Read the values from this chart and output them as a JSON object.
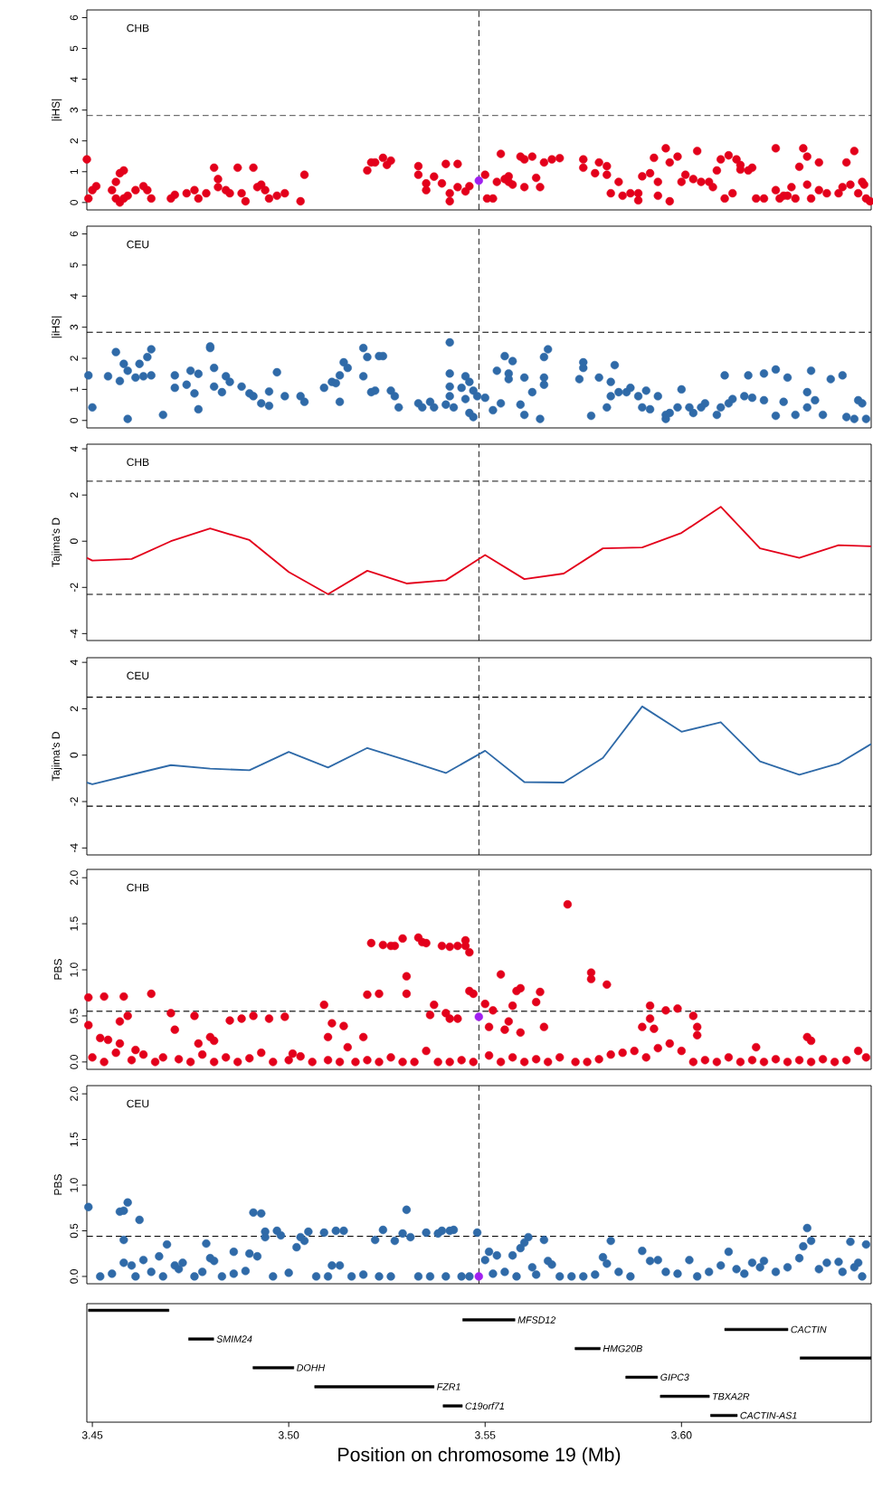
{
  "chart_data": [
    {
      "type": "scatter",
      "title": "CHB",
      "ylabel": "|iHS|",
      "marker": "circle",
      "tick_labels": "y",
      "xlim": [
        3.4486,
        3.6483
      ],
      "ylim": [
        -0.24,
        6.25
      ],
      "yticks": [
        0,
        1,
        2,
        3,
        4,
        5,
        6
      ],
      "ref_lines": [
        {
          "axis": "x",
          "value": 3.5484,
          "line_style": "dashed"
        },
        {
          "axis": "y",
          "value": 2.82,
          "line_style": "dashed"
        }
      ],
      "series": [
        {
          "color": "#e3001b",
          "x": [
            3.4486,
            3.449,
            3.45,
            3.451,
            3.455,
            3.456,
            3.456,
            3.457,
            3.457,
            3.458,
            3.458,
            3.459,
            3.461,
            3.463,
            3.464,
            3.465,
            3.47,
            3.471,
            3.474,
            3.476,
            3.477,
            3.479,
            3.481,
            3.482,
            3.482,
            3.484,
            3.485,
            3.487,
            3.488,
            3.489,
            3.491,
            3.492,
            3.493,
            3.494,
            3.495,
            3.497,
            3.499,
            3.503,
            3.504,
            3.52,
            3.521,
            3.522,
            3.524,
            3.525,
            3.526,
            3.533,
            3.533,
            3.535,
            3.535,
            3.537,
            3.539,
            3.54,
            3.541,
            3.541,
            3.543,
            3.543,
            3.545,
            3.546,
            3.55,
            3.5505,
            3.552,
            3.553,
            3.554,
            3.555,
            3.556,
            3.556,
            3.557,
            3.559,
            3.56,
            3.56,
            3.562,
            3.563,
            3.564,
            3.565,
            3.567,
            3.569,
            3.575,
            3.575,
            3.578,
            3.579,
            3.581,
            3.581,
            3.582,
            3.584,
            3.585,
            3.587,
            3.589,
            3.589,
            3.59,
            3.592,
            3.593,
            3.594,
            3.594,
            3.596,
            3.597,
            3.597,
            3.599,
            3.6,
            3.601,
            3.603,
            3.604,
            3.605,
            3.607,
            3.608,
            3.609,
            3.61,
            3.611,
            3.612,
            3.613,
            3.614,
            3.615,
            3.615,
            3.617,
            3.618,
            3.619,
            3.621,
            3.624,
            3.624,
            3.625,
            3.626,
            3.627,
            3.628,
            3.629,
            3.63,
            3.631,
            3.632,
            3.632,
            3.633,
            3.635,
            3.635,
            3.637,
            3.64,
            3.641,
            3.642,
            3.643,
            3.644,
            3.645,
            3.646,
            3.6465,
            3.647,
            3.648
          ],
          "values": [
            1.4,
            0.13,
            0.4,
            0.53,
            0.4,
            0.67,
            0.13,
            0,
            0.95,
            1.04,
            0.13,
            0.22,
            0.4,
            0.53,
            0.4,
            0.13,
            0.13,
            0.25,
            0.3,
            0.4,
            0.13,
            0.3,
            1.13,
            0.76,
            0.5,
            0.4,
            0.3,
            1.13,
            0.3,
            0.04,
            1.13,
            0.5,
            0.58,
            0.4,
            0.13,
            0.22,
            0.3,
            0.04,
            0.9,
            1.04,
            1.3,
            1.3,
            1.45,
            1.22,
            1.36,
            1.18,
            0.9,
            0.62,
            0.4,
            0.84,
            0.62,
            1.25,
            0.04,
            0.3,
            1.25,
            0.5,
            0.36,
            0.53,
            0.9,
            0.13,
            0.13,
            0.67,
            1.58,
            0.76,
            0.85,
            0.67,
            0.58,
            1.49,
            1.4,
            0.5,
            1.49,
            0.8,
            0.5,
            1.3,
            1.4,
            1.44,
            1.13,
            1.4,
            0.95,
            1.3,
            1.18,
            0.9,
            0.3,
            0.67,
            0.22,
            0.3,
            0.3,
            0.07,
            0.85,
            0.95,
            1.45,
            0.67,
            0.22,
            1.76,
            1.3,
            0.04,
            1.49,
            0.67,
            0.9,
            0.76,
            1.67,
            0.67,
            0.67,
            0.5,
            1.04,
            1.4,
            0.13,
            1.53,
            0.3,
            1.4,
            1.22,
            1.07,
            1.04,
            1.13,
            0.13,
            0.13,
            0.4,
            1.76,
            0.13,
            0.22,
            0.22,
            0.5,
            0.13,
            1.16,
            1.76,
            1.49,
            0.58,
            0.13,
            1.3,
            0.4,
            0.3,
            0.3,
            0.5,
            1.3,
            0.58,
            1.67,
            0.3,
            0.67,
            0.58,
            0.13,
            0.04
          ]
        },
        {
          "color": "#a020f0",
          "x": [
            3.5484
          ],
          "values": [
            0.71
          ]
        }
      ]
    },
    {
      "type": "scatter",
      "title": "CEU",
      "ylabel": "|iHS|",
      "marker": "circle",
      "tick_labels": "y",
      "xlim": [
        3.4486,
        3.6483
      ],
      "ylim": [
        -0.24,
        6.25
      ],
      "yticks": [
        0,
        1,
        2,
        3,
        4,
        5,
        6
      ],
      "ref_lines": [
        {
          "axis": "x",
          "value": 3.5484,
          "line_style": "dashed"
        },
        {
          "axis": "y",
          "value": 2.84,
          "line_style": "dashed"
        }
      ],
      "series": [
        {
          "color": "#2f6aa8",
          "x": [
            3.449,
            3.45,
            3.454,
            3.456,
            3.457,
            3.458,
            3.459,
            3.459,
            3.461,
            3.462,
            3.463,
            3.464,
            3.465,
            3.465,
            3.468,
            3.471,
            3.471,
            3.474,
            3.475,
            3.476,
            3.477,
            3.477,
            3.48,
            3.48,
            3.481,
            3.481,
            3.483,
            3.484,
            3.485,
            3.488,
            3.49,
            3.491,
            3.493,
            3.495,
            3.495,
            3.497,
            3.499,
            3.503,
            3.504,
            3.509,
            3.511,
            3.512,
            3.513,
            3.513,
            3.514,
            3.515,
            3.519,
            3.519,
            3.52,
            3.521,
            3.522,
            3.523,
            3.524,
            3.526,
            3.527,
            3.528,
            3.533,
            3.534,
            3.536,
            3.537,
            3.54,
            3.541,
            3.541,
            3.541,
            3.541,
            3.542,
            3.544,
            3.545,
            3.545,
            3.546,
            3.547,
            3.547,
            3.546,
            3.548,
            3.55,
            3.552,
            3.553,
            3.554,
            3.555,
            3.556,
            3.556,
            3.557,
            3.559,
            3.56,
            3.56,
            3.562,
            3.564,
            3.565,
            3.565,
            3.565,
            3.566,
            3.574,
            3.575,
            3.575,
            3.577,
            3.579,
            3.581,
            3.582,
            3.582,
            3.583,
            3.584,
            3.586,
            3.587,
            3.589,
            3.59,
            3.591,
            3.592,
            3.594,
            3.596,
            3.596,
            3.597,
            3.599,
            3.6,
            3.602,
            3.603,
            3.605,
            3.606,
            3.609,
            3.61,
            3.611,
            3.612,
            3.613,
            3.616,
            3.617,
            3.618,
            3.621,
            3.621,
            3.624,
            3.624,
            3.626,
            3.627,
            3.629,
            3.632,
            3.632,
            3.633,
            3.634,
            3.636,
            3.638,
            3.641,
            3.642,
            3.644,
            3.645,
            3.646,
            3.647
          ],
          "values": [
            1.45,
            0.42,
            1.42,
            2.2,
            1.27,
            1.82,
            0.05,
            1.6,
            1.38,
            1.82,
            1.42,
            2.04,
            2.29,
            1.45,
            0.18,
            1.45,
            1.05,
            1.15,
            1.6,
            0.87,
            0.36,
            1.5,
            2.38,
            2.33,
            1.69,
            1.09,
            0.91,
            1.42,
            1.24,
            1.09,
            0.87,
            0.78,
            0.55,
            0.47,
            0.93,
            1.55,
            0.78,
            0.78,
            0.6,
            1.05,
            1.24,
            1.2,
            0.6,
            1.45,
            1.87,
            1.69,
            2.33,
            1.42,
            2.04,
            0.91,
            0.96,
            2.07,
            2.07,
            0.96,
            0.78,
            0.42,
            0.55,
            0.42,
            0.6,
            0.42,
            0.51,
            2.51,
            1.51,
            1.09,
            0.78,
            0.42,
            1.05,
            1.42,
            0.69,
            0.24,
            0.11,
            0.96,
            1.24,
            0.78,
            0.73,
            0.33,
            1.6,
            0.55,
            2.07,
            1.51,
            1.33,
            1.91,
            0.51,
            1.38,
            0.18,
            0.91,
            0.05,
            1.38,
            1.15,
            2.04,
            2.29,
            1.33,
            1.69,
            1.87,
            0.15,
            1.38,
            0.42,
            0.78,
            1.24,
            1.78,
            0.91,
            0.91,
            1.05,
            0.78,
            0.42,
            0.96,
            0.36,
            0.78,
            0.05,
            0.18,
            0.24,
            0.42,
            1.0,
            0.42,
            0.24,
            0.42,
            0.55,
            0.18,
            0.42,
            1.45,
            0.55,
            0.69,
            0.78,
            1.45,
            0.73,
            1.51,
            0.65,
            0.15,
            1.64,
            0.6,
            1.38,
            0.18,
            0.42,
            0.91,
            1.6,
            0.65,
            0.18,
            1.33,
            1.45,
            0.11,
            0.05,
            0.65,
            0.55,
            0.05
          ]
        }
      ]
    },
    {
      "type": "line",
      "title": "CHB",
      "ylabel": "Tajima's D",
      "tick_labels": "y",
      "xlim": [
        3.4486,
        3.6483
      ],
      "ylim": [
        -4.3,
        4.2
      ],
      "yticks": [
        -4,
        -2,
        0,
        2,
        4
      ],
      "ref_lines": [
        {
          "axis": "x",
          "value": 3.5484,
          "line_style": "dashed"
        },
        {
          "axis": "y",
          "value": 2.6,
          "line_style": "dashed"
        },
        {
          "axis": "y",
          "value": -2.3,
          "line_style": "dashed"
        }
      ],
      "series": [
        {
          "color": "#e3001b",
          "x": [
            3.4486,
            3.45,
            3.46,
            3.47,
            3.48,
            3.49,
            3.5,
            3.51,
            3.52,
            3.53,
            3.54,
            3.55,
            3.56,
            3.57,
            3.58,
            3.59,
            3.6,
            3.61,
            3.62,
            3.63,
            3.64,
            3.6483
          ],
          "values": [
            -0.72,
            -0.84,
            -0.77,
            0.0,
            0.55,
            0.05,
            -1.33,
            -2.29,
            -1.28,
            -1.83,
            -1.69,
            -0.6,
            -1.64,
            -1.4,
            -0.31,
            -0.27,
            0.36,
            1.49,
            -0.31,
            -0.72,
            -0.17,
            -0.22
          ]
        }
      ]
    },
    {
      "type": "line",
      "title": "CEU",
      "ylabel": "Tajima's D",
      "tick_labels": "y",
      "xlim": [
        3.4486,
        3.6483
      ],
      "ylim": [
        -4.3,
        4.2
      ],
      "yticks": [
        -4,
        -2,
        0,
        2,
        4
      ],
      "ref_lines": [
        {
          "axis": "x",
          "value": 3.5484,
          "line_style": "dashed"
        },
        {
          "axis": "y",
          "value": 2.5,
          "line_style": "dashed"
        },
        {
          "axis": "y",
          "value": -2.2,
          "line_style": "dashed"
        }
      ],
      "series": [
        {
          "color": "#2f6aa8",
          "x": [
            3.4486,
            3.45,
            3.46,
            3.47,
            3.48,
            3.49,
            3.5,
            3.51,
            3.52,
            3.53,
            3.54,
            3.55,
            3.56,
            3.57,
            3.58,
            3.59,
            3.6,
            3.61,
            3.62,
            3.63,
            3.64,
            3.6483
          ],
          "values": [
            -1.18,
            -1.25,
            -0.84,
            -0.43,
            -0.58,
            -0.65,
            0.14,
            -0.53,
            0.31,
            -0.22,
            -0.77,
            0.19,
            -1.16,
            -1.18,
            -0.12,
            2.1,
            1.01,
            1.42,
            -0.27,
            -0.84,
            -0.36,
            0.48
          ]
        }
      ]
    },
    {
      "type": "scatter",
      "title": "CHB",
      "ylabel": "PBS",
      "marker": "circle",
      "tick_labels": "y",
      "xlim": [
        3.4486,
        3.6483
      ],
      "ylim": [
        -0.08,
        2.09
      ],
      "yticks": [
        {
          "value": 0,
          "label": "0.0"
        },
        0.5,
        {
          "value": 1,
          "label": "1.0"
        },
        1.5,
        {
          "value": 2,
          "label": "2.0"
        }
      ],
      "ref_lines": [
        {
          "axis": "x",
          "value": 3.5484,
          "line_style": "dashed"
        },
        {
          "axis": "y",
          "value": 0.55,
          "line_style": "dashed"
        }
      ],
      "series": [
        {
          "color": "#e3001b",
          "x": [
            3.449,
            3.449,
            3.453,
            3.458,
            3.459,
            3.457,
            3.465,
            3.452,
            3.454,
            3.457,
            3.461,
            3.47,
            3.471,
            3.476,
            3.477,
            3.48,
            3.481,
            3.485,
            3.488,
            3.491,
            3.495,
            3.499,
            3.501,
            3.509,
            3.51,
            3.511,
            3.514,
            3.515,
            3.519,
            3.521,
            3.52,
            3.523,
            3.524,
            3.526,
            3.527,
            3.529,
            3.53,
            3.53,
            3.533,
            3.534,
            3.535,
            3.536,
            3.537,
            3.539,
            3.54,
            3.541,
            3.541,
            3.543,
            3.543,
            3.545,
            3.546,
            3.545,
            3.546,
            3.547,
            3.55,
            3.551,
            3.552,
            3.554,
            3.555,
            3.556,
            3.557,
            3.558,
            3.559,
            3.559,
            3.563,
            3.564,
            3.565,
            3.571,
            3.577,
            3.577,
            3.581,
            3.59,
            3.592,
            3.592,
            3.593,
            3.596,
            3.599,
            3.603,
            3.604,
            3.604,
            3.632,
            3.633,
            3.619,
            3.45,
            3.453,
            3.456,
            3.46,
            3.463,
            3.466,
            3.468,
            3.472,
            3.475,
            3.478,
            3.481,
            3.484,
            3.487,
            3.49,
            3.493,
            3.496,
            3.5,
            3.503,
            3.506,
            3.51,
            3.513,
            3.517,
            3.52,
            3.523,
            3.526,
            3.529,
            3.532,
            3.535,
            3.538,
            3.541,
            3.544,
            3.547,
            3.551,
            3.554,
            3.557,
            3.56,
            3.563,
            3.566,
            3.569,
            3.573,
            3.576,
            3.579,
            3.582,
            3.585,
            3.588,
            3.591,
            3.594,
            3.597,
            3.6,
            3.603,
            3.606,
            3.609,
            3.612,
            3.615,
            3.618,
            3.621,
            3.624,
            3.627,
            3.63,
            3.633,
            3.636,
            3.639,
            3.642,
            3.645,
            3.647
          ],
          "values": [
            0.7,
            0.4,
            0.71,
            0.71,
            0.5,
            0.44,
            0.74,
            0.26,
            0.24,
            0.2,
            0.13,
            0.53,
            0.35,
            0.5,
            0.2,
            0.27,
            0.23,
            0.45,
            0.47,
            0.5,
            0.47,
            0.49,
            0.09,
            0.62,
            0.27,
            0.42,
            0.39,
            0.16,
            0.27,
            1.29,
            0.73,
            0.74,
            1.27,
            1.26,
            1.26,
            1.34,
            0.93,
            0.74,
            1.35,
            1.3,
            1.29,
            0.51,
            0.62,
            1.26,
            0.53,
            0.47,
            1.25,
            1.26,
            0.47,
            1.32,
            1.19,
            1.26,
            0.77,
            0.74,
            0.63,
            0.38,
            0.56,
            0.95,
            0.35,
            0.44,
            0.61,
            0.77,
            0.8,
            0.32,
            0.65,
            0.76,
            0.38,
            1.71,
            0.97,
            0.9,
            0.84,
            0.38,
            0.47,
            0.61,
            0.36,
            0.56,
            0.58,
            0.5,
            0.38,
            0.29,
            0.27,
            0.23,
            0.16,
            0.05,
            0,
            0.1,
            0.02,
            0.08,
            0,
            0.05,
            0.03,
            0,
            0.08,
            0,
            0.05,
            0,
            0.04,
            0.1,
            0,
            0.02,
            0.06,
            0,
            0.02,
            0,
            0,
            0.02,
            0,
            0.05,
            0,
            0,
            0.12,
            0,
            0,
            0.02,
            0,
            0.07,
            0,
            0.05,
            0,
            0.03,
            0,
            0.05,
            0,
            0,
            0.03,
            0.08,
            0.1,
            0.12,
            0.05,
            0.15,
            0.2,
            0.12,
            0,
            0.02,
            0,
            0.05,
            0,
            0.02,
            0,
            0.03,
            0,
            0.02,
            0,
            0.03,
            0,
            0.02,
            0.12,
            0.05
          ]
        },
        {
          "color": "#a020f0",
          "x": [
            3.5484
          ],
          "values": [
            0.49
          ]
        }
      ]
    },
    {
      "type": "scatter",
      "title": "CEU",
      "ylabel": "PBS",
      "marker": "circle",
      "tick_labels": "y",
      "xlim": [
        3.4486,
        3.6483
      ],
      "ylim": [
        -0.08,
        2.09
      ],
      "yticks": [
        {
          "value": 0,
          "label": "0.0"
        },
        0.5,
        {
          "value": 1,
          "label": "1.0"
        },
        1.5,
        {
          "value": 2,
          "label": "2.0"
        }
      ],
      "ref_lines": [
        {
          "axis": "x",
          "value": 3.5484,
          "line_style": "dashed"
        },
        {
          "axis": "y",
          "value": 0.44,
          "line_style": "dashed"
        }
      ],
      "series": [
        {
          "color": "#2f6aa8",
          "x": [
            3.449,
            3.457,
            3.458,
            3.459,
            3.462,
            3.458,
            3.458,
            3.46,
            3.463,
            3.467,
            3.469,
            3.471,
            3.473,
            3.479,
            3.48,
            3.481,
            3.486,
            3.49,
            3.491,
            3.492,
            3.493,
            3.494,
            3.494,
            3.497,
            3.498,
            3.502,
            3.503,
            3.504,
            3.505,
            3.509,
            3.511,
            3.512,
            3.513,
            3.514,
            3.522,
            3.524,
            3.527,
            3.529,
            3.53,
            3.531,
            3.535,
            3.538,
            3.539,
            3.541,
            3.542,
            3.548,
            3.55,
            3.551,
            3.553,
            3.557,
            3.559,
            3.56,
            3.561,
            3.562,
            3.565,
            3.566,
            3.567,
            3.58,
            3.581,
            3.582,
            3.59,
            3.592,
            3.594,
            3.602,
            3.61,
            3.612,
            3.618,
            3.621,
            3.63,
            3.631,
            3.632,
            3.633,
            3.64,
            3.643,
            3.647,
            3.645,
            3.452,
            3.455,
            3.461,
            3.465,
            3.468,
            3.472,
            3.476,
            3.478,
            3.483,
            3.486,
            3.489,
            3.496,
            3.5,
            3.507,
            3.51,
            3.516,
            3.519,
            3.523,
            3.526,
            3.533,
            3.536,
            3.54,
            3.544,
            3.546,
            3.552,
            3.555,
            3.558,
            3.563,
            3.569,
            3.572,
            3.575,
            3.578,
            3.584,
            3.587,
            3.596,
            3.599,
            3.604,
            3.607,
            3.614,
            3.616,
            3.62,
            3.624,
            3.627,
            3.635,
            3.637,
            3.641,
            3.644,
            3.646
          ],
          "values": [
            0.76,
            0.71,
            0.72,
            0.81,
            0.62,
            0.4,
            0.15,
            0.12,
            0.18,
            0.22,
            0.35,
            0.12,
            0.15,
            0.36,
            0.2,
            0.17,
            0.27,
            0.25,
            0.7,
            0.22,
            0.69,
            0.49,
            0.43,
            0.5,
            0.45,
            0.32,
            0.43,
            0.39,
            0.49,
            0.48,
            0.12,
            0.5,
            0.12,
            0.5,
            0.4,
            0.51,
            0.39,
            0.47,
            0.73,
            0.43,
            0.48,
            0.47,
            0.5,
            0.5,
            0.51,
            0.48,
            0.18,
            0.27,
            0.23,
            0.23,
            0.31,
            0.37,
            0.43,
            0.1,
            0.4,
            0.17,
            0.13,
            0.21,
            0.14,
            0.39,
            0.28,
            0.17,
            0.18,
            0.18,
            0.12,
            0.27,
            0.15,
            0.17,
            0.2,
            0.33,
            0.53,
            0.39,
            0.16,
            0.38,
            0.35,
            0.15,
            0,
            0.03,
            0,
            0.05,
            0,
            0.08,
            0,
            0.05,
            0,
            0.03,
            0.06,
            0,
            0.04,
            0,
            0,
            0,
            0.02,
            0,
            0,
            0,
            0,
            0,
            0,
            0,
            0.03,
            0.05,
            0,
            0.02,
            0,
            0,
            0,
            0.02,
            0.05,
            0,
            0.05,
            0.03,
            0,
            0.05,
            0.08,
            0.03,
            0.1,
            0.05,
            0.1,
            0.08,
            0.15,
            0.05,
            0.1,
            0
          ]
        },
        {
          "color": "#a020f0",
          "x": [
            3.5484
          ],
          "values": [
            0.0
          ]
        }
      ]
    },
    {
      "type": "bar",
      "orientation": "horizontal",
      "xlabel": "Position on chromosome 19 (Mb)",
      "color": "#000000",
      "xlim": [
        3.4486,
        3.6483
      ],
      "xticks": [
        3.45,
        {
          "value": 3.5,
          "label": "3.50"
        },
        3.55,
        {
          "value": 3.6,
          "label": "3.60"
        }
      ],
      "categories": [
        null,
        "MFSD12",
        "CACTIN",
        "SMIM24",
        "HMG20B",
        null,
        "DOHH",
        "GIPC3",
        "FZR1",
        "TBXA2R",
        "C19orf71",
        "CACTIN-AS1"
      ],
      "base": [
        3.449,
        3.5443,
        3.611,
        3.4745,
        3.5729,
        3.6302,
        3.4909,
        3.5858,
        3.5066,
        3.5946,
        3.5393,
        3.6074
      ],
      "values": [
        0.0205,
        0.0133,
        0.0161,
        0.0064,
        0.0064,
        0.0181,
        0.0104,
        0.0081,
        0.0304,
        0.0125,
        0.0049,
        0.0068
      ]
    }
  ]
}
